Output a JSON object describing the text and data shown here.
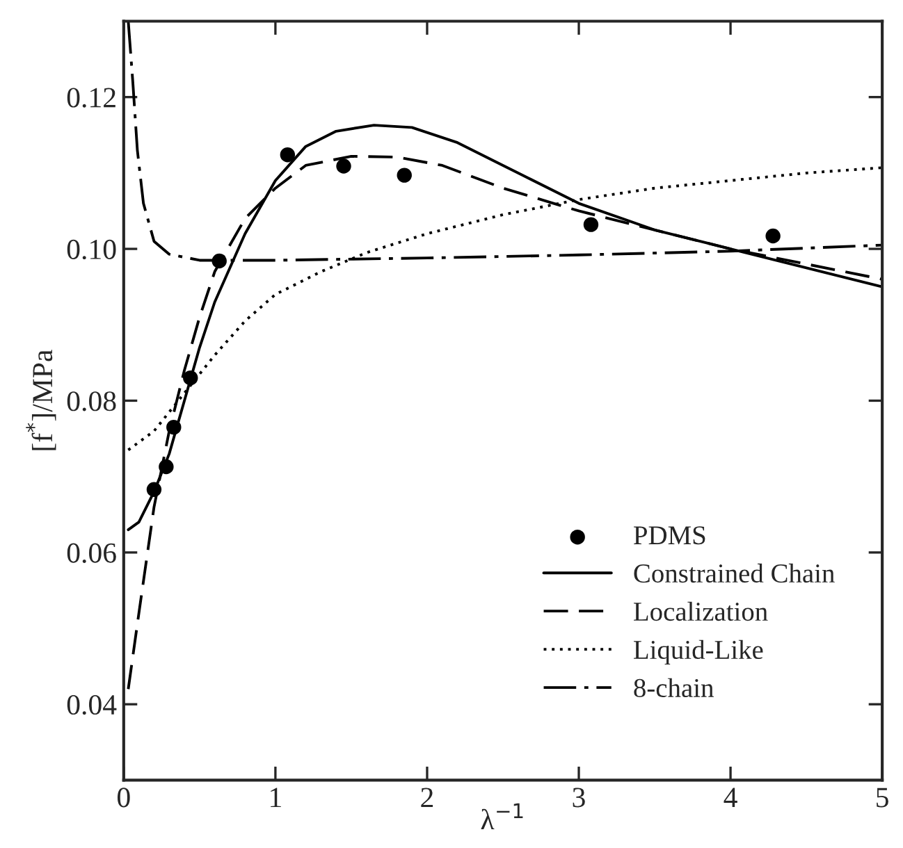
{
  "chart_data": {
    "type": "line",
    "xlabel": "λ$^{−1}$",
    "ylabel": "[f$^{*}$]/MPa",
    "xlim": [
      0,
      5
    ],
    "ylim": [
      0.03,
      0.13
    ],
    "xticks": [
      0,
      1,
      2,
      3,
      4,
      5
    ],
    "yticks": [
      0.04,
      0.06,
      0.08,
      {
        "value": 0.1,
        "label": "0.10"
      },
      0.12
    ],
    "grid": false,
    "legend": "bottom right",
    "series": [
      {
        "name": "PDMS",
        "type": "scatter",
        "color": "#000000",
        "marker": "circle",
        "x": [
          0.2,
          0.28,
          0.33,
          0.44,
          0.63,
          1.08,
          1.45,
          1.85,
          3.08,
          4.28
        ],
        "values": [
          0.0683,
          0.0713,
          0.0765,
          0.083,
          0.0984,
          0.1124,
          0.1109,
          0.1097,
          0.1032,
          0.1017
        ]
      },
      {
        "name": "Constrained Chain",
        "color": "#000000",
        "line_style": "solid",
        "x": [
          0.03,
          0.1,
          0.2,
          0.3,
          0.4,
          0.5,
          0.6,
          0.8,
          1.0,
          1.2,
          1.4,
          1.65,
          1.9,
          2.2,
          2.5,
          3.0,
          3.5,
          4.0,
          4.5,
          5.0
        ],
        "values": [
          0.063,
          0.064,
          0.068,
          0.073,
          0.08,
          0.087,
          0.093,
          0.102,
          0.109,
          0.1135,
          0.1155,
          0.1163,
          0.116,
          0.114,
          0.111,
          0.106,
          0.1025,
          0.1,
          0.0975,
          0.095
        ]
      },
      {
        "name": "Localization",
        "color": "#000000",
        "line_style": "dashed",
        "x": [
          0.03,
          0.1,
          0.2,
          0.3,
          0.4,
          0.5,
          0.6,
          0.8,
          1.0,
          1.2,
          1.5,
          1.8,
          2.1,
          2.5,
          3.0,
          3.5,
          4.0,
          4.5,
          5.0
        ],
        "values": [
          0.042,
          0.052,
          0.066,
          0.076,
          0.084,
          0.091,
          0.097,
          0.104,
          0.108,
          0.111,
          0.1122,
          0.1121,
          0.111,
          0.108,
          0.105,
          0.1025,
          0.1,
          0.098,
          0.096
        ]
      },
      {
        "name": "Liquid-Like",
        "color": "#000000",
        "line_style": "dotted",
        "x": [
          0.03,
          0.2,
          0.4,
          0.6,
          0.8,
          1.0,
          1.3,
          1.6,
          2.0,
          2.5,
          3.0,
          3.5,
          4.0,
          4.5,
          5.0
        ],
        "values": [
          0.0735,
          0.076,
          0.081,
          0.086,
          0.0905,
          0.094,
          0.097,
          0.0995,
          0.102,
          0.1045,
          0.1065,
          0.108,
          0.109,
          0.11,
          0.1107
        ]
      },
      {
        "name": "8-chain",
        "color": "#000000",
        "line_style": "dashdot",
        "x": [
          0.03,
          0.06,
          0.09,
          0.13,
          0.2,
          0.3,
          0.5,
          1.0,
          2.0,
          3.0,
          4.0,
          5.0
        ],
        "values": [
          0.13,
          0.122,
          0.113,
          0.106,
          0.101,
          0.0993,
          0.0985,
          0.0985,
          0.0988,
          0.0992,
          0.0997,
          0.1005
        ]
      }
    ]
  }
}
